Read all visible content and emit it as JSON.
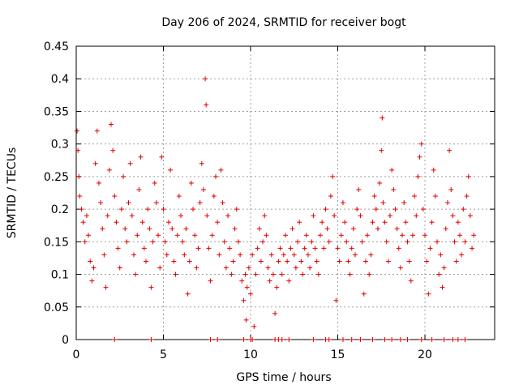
{
  "chart_data": {
    "type": "scatter",
    "title": "Day 206 of 2024, SRMTID for receiver bogt",
    "xlabel": "GPS time / hours",
    "ylabel": "SRMTID / TECUs",
    "xlim": [
      0,
      24
    ],
    "ylim": [
      0,
      0.45
    ],
    "grid": true,
    "marker": "+",
    "color": "#e00000",
    "x_ticks": [
      {
        "value": 0,
        "label": "0"
      },
      {
        "value": 5,
        "label": "5"
      },
      {
        "value": 10,
        "label": "10"
      },
      {
        "value": 15,
        "label": "15"
      },
      {
        "value": 20,
        "label": "20"
      }
    ],
    "y_ticks": [
      {
        "value": 0,
        "label": "0"
      },
      {
        "value": 0.05,
        "label": "0.05"
      },
      {
        "value": 0.1,
        "label": "0.1"
      },
      {
        "value": 0.15,
        "label": "0.15"
      },
      {
        "value": 0.2,
        "label": "0.2"
      },
      {
        "value": 0.25,
        "label": "0.25"
      },
      {
        "value": 0.3,
        "label": "0.3"
      },
      {
        "value": 0.35,
        "label": "0.35"
      },
      {
        "value": 0.4,
        "label": "0.4"
      },
      {
        "value": 0.45,
        "label": "0.45"
      }
    ],
    "series": [
      {
        "name": "SRMTID",
        "points": [
          [
            0.05,
            0.32
          ],
          [
            0.1,
            0.29
          ],
          [
            0.15,
            0.25
          ],
          [
            0.2,
            0.22
          ],
          [
            0.3,
            0.2
          ],
          [
            0.4,
            0.18
          ],
          [
            0.5,
            0.15
          ],
          [
            0.6,
            0.19
          ],
          [
            0.7,
            0.16
          ],
          [
            0.8,
            0.12
          ],
          [
            0.9,
            0.09
          ],
          [
            1.0,
            0.11
          ],
          [
            1.1,
            0.27
          ],
          [
            1.2,
            0.32
          ],
          [
            1.3,
            0.24
          ],
          [
            1.4,
            0.21
          ],
          [
            1.5,
            0.17
          ],
          [
            1.6,
            0.13
          ],
          [
            1.7,
            0.08
          ],
          [
            1.8,
            0.19
          ],
          [
            1.9,
            0.26
          ],
          [
            2.0,
            0.33
          ],
          [
            2.1,
            0.29
          ],
          [
            2.2,
            0.22
          ],
          [
            2.3,
            0.18
          ],
          [
            2.4,
            0.14
          ],
          [
            2.5,
            0.11
          ],
          [
            2.6,
            0.2
          ],
          [
            2.7,
            0.25
          ],
          [
            2.8,
            0.17
          ],
          [
            2.9,
            0.15
          ],
          [
            3.0,
            0.21
          ],
          [
            3.1,
            0.27
          ],
          [
            3.2,
            0.19
          ],
          [
            3.3,
            0.13
          ],
          [
            3.4,
            0.1
          ],
          [
            3.5,
            0.16
          ],
          [
            3.6,
            0.23
          ],
          [
            3.7,
            0.28
          ],
          [
            3.8,
            0.18
          ],
          [
            3.9,
            0.14
          ],
          [
            4.0,
            0.12
          ],
          [
            4.1,
            0.2
          ],
          [
            4.2,
            0.17
          ],
          [
            4.3,
            0.08
          ],
          [
            4.4,
            0.15
          ],
          [
            4.5,
            0.24
          ],
          [
            4.6,
            0.21
          ],
          [
            4.7,
            0.16
          ],
          [
            4.8,
            0.11
          ],
          [
            4.9,
            0.28
          ],
          [
            5.0,
            0.2
          ],
          [
            5.1,
            0.15
          ],
          [
            5.2,
            0.13
          ],
          [
            5.3,
            0.18
          ],
          [
            5.4,
            0.26
          ],
          [
            5.5,
            0.17
          ],
          [
            5.6,
            0.12
          ],
          [
            5.7,
            0.1
          ],
          [
            5.8,
            0.16
          ],
          [
            5.9,
            0.22
          ],
          [
            6.0,
            0.19
          ],
          [
            6.1,
            0.15
          ],
          [
            6.2,
            0.13
          ],
          [
            6.3,
            0.17
          ],
          [
            6.4,
            0.07
          ],
          [
            6.5,
            0.12
          ],
          [
            6.6,
            0.24
          ],
          [
            6.7,
            0.2
          ],
          [
            6.8,
            0.16
          ],
          [
            6.9,
            0.11
          ],
          [
            7.0,
            0.14
          ],
          [
            7.1,
            0.21
          ],
          [
            7.2,
            0.27
          ],
          [
            7.3,
            0.23
          ],
          [
            7.4,
            0.4
          ],
          [
            7.45,
            0.36
          ],
          [
            7.5,
            0.19
          ],
          [
            7.6,
            0.14
          ],
          [
            7.7,
            0.09
          ],
          [
            7.8,
            0.16
          ],
          [
            7.9,
            0.22
          ],
          [
            8.0,
            0.25
          ],
          [
            8.1,
            0.18
          ],
          [
            8.2,
            0.13
          ],
          [
            8.3,
            0.26
          ],
          [
            8.4,
            0.21
          ],
          [
            8.5,
            0.15
          ],
          [
            8.6,
            0.11
          ],
          [
            8.7,
            0.19
          ],
          [
            8.8,
            0.14
          ],
          [
            8.9,
            0.1
          ],
          [
            9.0,
            0.12
          ],
          [
            9.1,
            0.17
          ],
          [
            9.2,
            0.2
          ],
          [
            9.3,
            0.15
          ],
          [
            9.4,
            0.13
          ],
          [
            9.5,
            0.09
          ],
          [
            9.6,
            0.06
          ],
          [
            9.7,
            0.1
          ],
          [
            9.75,
            0.03
          ],
          [
            9.8,
            0.08
          ],
          [
            9.9,
            0.11
          ],
          [
            10.0,
            0.07
          ],
          [
            10.1,
            0.13
          ],
          [
            10.2,
            0.02
          ],
          [
            10.3,
            0.1
          ],
          [
            10.4,
            0.14
          ],
          [
            10.5,
            0.17
          ],
          [
            10.6,
            0.12
          ],
          [
            10.7,
            0.15
          ],
          [
            10.8,
            0.19
          ],
          [
            10.9,
            0.16
          ],
          [
            11.0,
            0.11
          ],
          [
            11.1,
            0.09
          ],
          [
            11.2,
            0.13
          ],
          [
            11.3,
            0.1
          ],
          [
            11.4,
            0.04
          ],
          [
            11.5,
            0.08
          ],
          [
            11.6,
            0.12
          ],
          [
            11.7,
            0.14
          ],
          [
            11.8,
            0.1
          ],
          [
            11.9,
            0.13
          ],
          [
            12.0,
            0.16
          ],
          [
            12.1,
            0.12
          ],
          [
            12.2,
            0.09
          ],
          [
            12.3,
            0.14
          ],
          [
            12.4,
            0.17
          ],
          [
            12.5,
            0.13
          ],
          [
            12.6,
            0.11
          ],
          [
            12.7,
            0.15
          ],
          [
            12.8,
            0.18
          ],
          [
            12.9,
            0.12
          ],
          [
            13.0,
            0.1
          ],
          [
            13.1,
            0.14
          ],
          [
            13.2,
            0.16
          ],
          [
            13.3,
            0.13
          ],
          [
            13.4,
            0.11
          ],
          [
            13.5,
            0.15
          ],
          [
            13.6,
            0.19
          ],
          [
            13.7,
            0.14
          ],
          [
            13.8,
            0.12
          ],
          [
            13.9,
            0.1
          ],
          [
            14.0,
            0.16
          ],
          [
            14.1,
            0.18
          ],
          [
            14.2,
            0.14
          ],
          [
            14.3,
            0.2
          ],
          [
            14.4,
            0.17
          ],
          [
            14.5,
            0.15
          ],
          [
            14.6,
            0.22
          ],
          [
            14.7,
            0.25
          ],
          [
            14.8,
            0.19
          ],
          [
            14.9,
            0.06
          ],
          [
            15.0,
            0.14
          ],
          [
            15.1,
            0.12
          ],
          [
            15.2,
            0.16
          ],
          [
            15.3,
            0.21
          ],
          [
            15.4,
            0.18
          ],
          [
            15.5,
            0.15
          ],
          [
            15.6,
            0.12
          ],
          [
            15.7,
            0.1
          ],
          [
            15.8,
            0.14
          ],
          [
            15.9,
            0.17
          ],
          [
            16.0,
            0.13
          ],
          [
            16.1,
            0.2
          ],
          [
            16.2,
            0.23
          ],
          [
            16.3,
            0.19
          ],
          [
            16.4,
            0.15
          ],
          [
            16.5,
            0.07
          ],
          [
            16.6,
            0.12
          ],
          [
            16.7,
            0.16
          ],
          [
            16.8,
            0.1
          ],
          [
            16.9,
            0.13
          ],
          [
            17.0,
            0.18
          ],
          [
            17.1,
            0.22
          ],
          [
            17.2,
            0.2
          ],
          [
            17.3,
            0.17
          ],
          [
            17.4,
            0.24
          ],
          [
            17.5,
            0.29
          ],
          [
            17.55,
            0.34
          ],
          [
            17.6,
            0.21
          ],
          [
            17.7,
            0.18
          ],
          [
            17.8,
            0.15
          ],
          [
            17.9,
            0.12
          ],
          [
            18.0,
            0.19
          ],
          [
            18.1,
            0.26
          ],
          [
            18.2,
            0.23
          ],
          [
            18.3,
            0.2
          ],
          [
            18.4,
            0.17
          ],
          [
            18.5,
            0.14
          ],
          [
            18.6,
            0.11
          ],
          [
            18.7,
            0.16
          ],
          [
            18.8,
            0.21
          ],
          [
            18.9,
            0.18
          ],
          [
            19.0,
            0.15
          ],
          [
            19.1,
            0.12
          ],
          [
            19.2,
            0.09
          ],
          [
            19.3,
            0.16
          ],
          [
            19.4,
            0.22
          ],
          [
            19.5,
            0.19
          ],
          [
            19.6,
            0.25
          ],
          [
            19.7,
            0.28
          ],
          [
            19.8,
            0.3
          ],
          [
            19.9,
            0.2
          ],
          [
            20.0,
            0.16
          ],
          [
            20.1,
            0.12
          ],
          [
            20.2,
            0.07
          ],
          [
            20.3,
            0.14
          ],
          [
            20.4,
            0.18
          ],
          [
            20.5,
            0.26
          ],
          [
            20.6,
            0.22
          ],
          [
            20.7,
            0.15
          ],
          [
            20.8,
            0.1
          ],
          [
            20.9,
            0.13
          ],
          [
            21.0,
            0.08
          ],
          [
            21.1,
            0.11
          ],
          [
            21.2,
            0.17
          ],
          [
            21.3,
            0.21
          ],
          [
            21.4,
            0.29
          ],
          [
            21.5,
            0.23
          ],
          [
            21.6,
            0.19
          ],
          [
            21.7,
            0.15
          ],
          [
            21.8,
            0.12
          ],
          [
            21.9,
            0.18
          ],
          [
            22.0,
            0.16
          ],
          [
            22.1,
            0.13
          ],
          [
            22.2,
            0.2
          ],
          [
            22.3,
            0.15
          ],
          [
            22.4,
            0.22
          ],
          [
            22.5,
            0.25
          ],
          [
            22.6,
            0.19
          ],
          [
            22.7,
            0.14
          ],
          [
            22.8,
            0.16
          ]
        ]
      }
    ],
    "zero_markers_x": [
      2.2,
      4.3,
      7.7,
      8.1,
      9.6,
      10.0,
      10.1,
      11.4,
      11.6,
      11.8,
      12.2,
      13.6,
      14.3,
      14.5,
      15.3,
      15.8,
      16.3,
      17.0,
      17.7,
      18.1,
      18.6,
      19.0,
      19.8,
      20.4,
      21.1,
      21.6,
      21.9,
      22.3
    ]
  }
}
